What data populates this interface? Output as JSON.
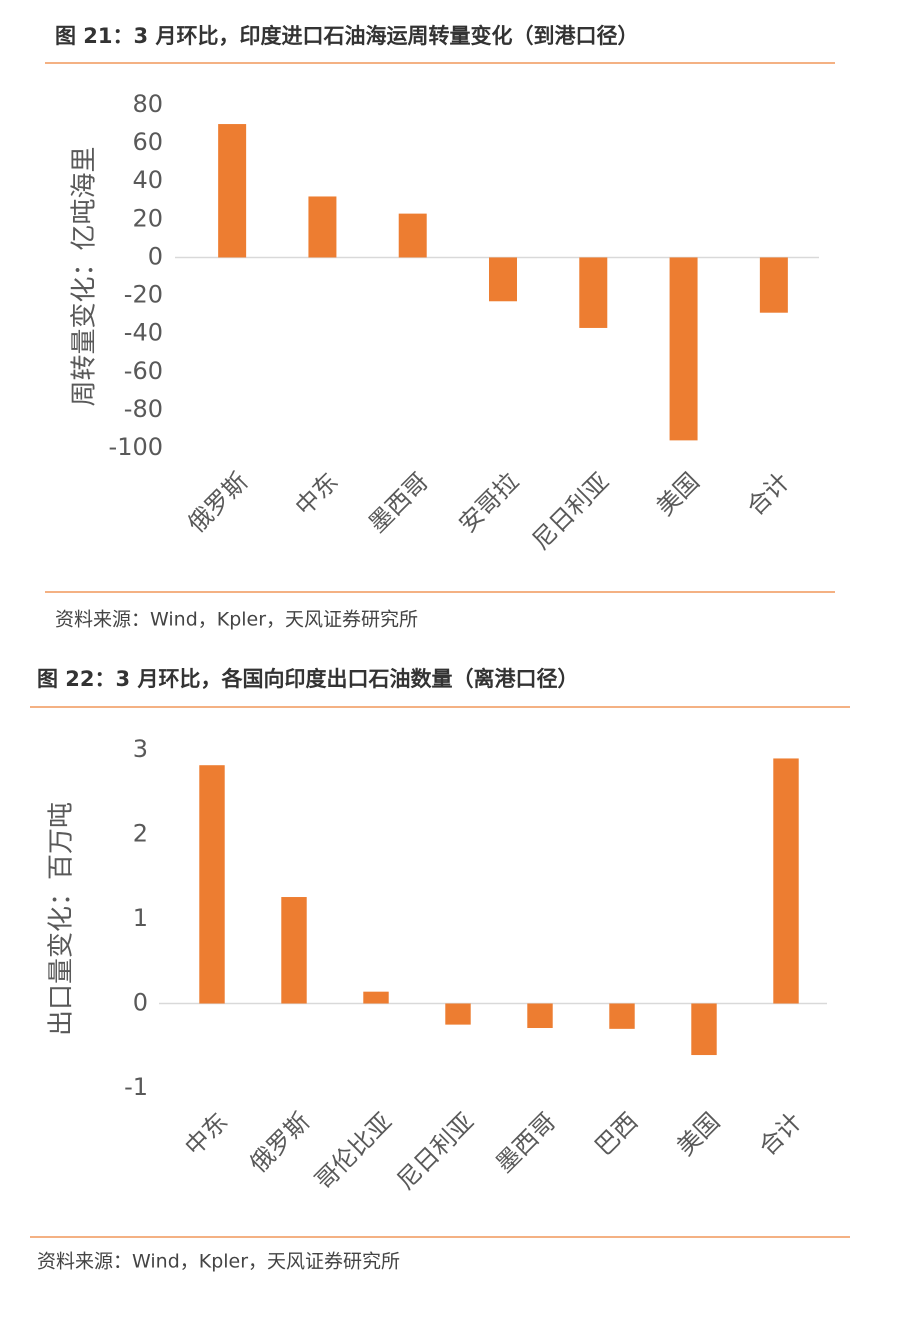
{
  "chart_data": [
    {
      "type": "bar",
      "title": "图 21：3 月环比，印度进口石油海运周转量变化（到港口径）",
      "y_label": "周转量变化：亿吨海里",
      "categories": [
        "俄罗斯",
        "中东",
        "墨西哥",
        "安哥拉",
        "尼日利亚",
        "美国",
        "合计"
      ],
      "values": [
        70,
        32,
        23,
        -23,
        -37,
        -96,
        -29
      ],
      "color": "#ED7D31",
      "ylim": [
        -100,
        80
      ],
      "yticks": [
        80,
        60,
        40,
        20,
        0,
        -20,
        -40,
        -60,
        -80,
        -100
      ],
      "source": "资料来源：Wind，Kpler，天风证券研究所"
    },
    {
      "type": "bar",
      "title": "图 22：3 月环比，各国向印度出口石油数量（离港口径）",
      "y_label": "出口量变化：百万吨",
      "categories": [
        "中东",
        "俄罗斯",
        "哥伦比亚",
        "尼日利亚",
        "墨西哥",
        "巴西",
        "美国",
        "合计"
      ],
      "values": [
        2.82,
        1.26,
        0.14,
        -0.25,
        -0.29,
        -0.3,
        -0.61,
        2.9
      ],
      "color": "#ED7D31",
      "ylim": [
        -1,
        3
      ],
      "yticks": [
        3,
        2,
        1,
        0,
        -1
      ],
      "source": "资料来源：Wind，Kpler，天风证券研究所"
    }
  ]
}
